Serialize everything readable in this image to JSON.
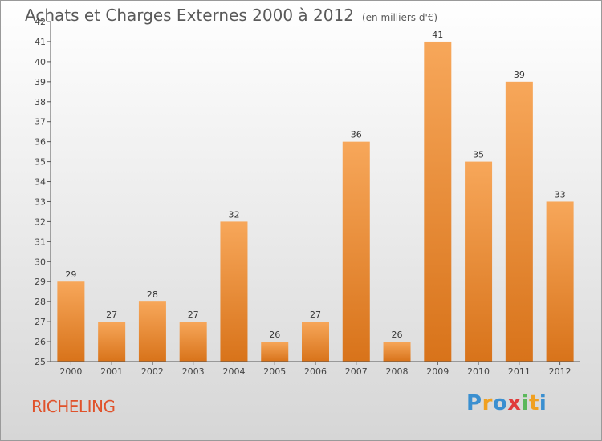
{
  "title": "Achats et Charges Externes 2000 à 2012",
  "unit_label": "(en milliers d'€)",
  "commune": "RICHELING",
  "logo": {
    "letters": [
      "P",
      "r",
      "o",
      "x",
      "i",
      "t",
      "i"
    ],
    "colors": [
      "#3a8fd0",
      "#f0a020",
      "#3a8fd0",
      "#e03a3a",
      "#5cb85c",
      "#f0a020",
      "#3a8fd0"
    ]
  },
  "colors": {
    "bar_top": "#f7a75a",
    "bar_bottom": "#d8731a",
    "axis": "#555555",
    "title": "#5a5a5a",
    "commune": "#e0522b"
  },
  "chart_data": {
    "type": "bar",
    "categories": [
      "2000",
      "2001",
      "2002",
      "2003",
      "2004",
      "2005",
      "2006",
      "2007",
      "2008",
      "2009",
      "2010",
      "2011",
      "2012"
    ],
    "values": [
      29,
      27,
      28,
      27,
      32,
      26,
      27,
      36,
      26,
      41,
      35,
      39,
      33
    ],
    "ylim": [
      25,
      42
    ],
    "yticks": [
      25,
      26,
      27,
      28,
      29,
      30,
      31,
      32,
      33,
      34,
      35,
      36,
      37,
      38,
      39,
      40,
      41,
      42
    ],
    "grid": false,
    "legend": "none"
  }
}
